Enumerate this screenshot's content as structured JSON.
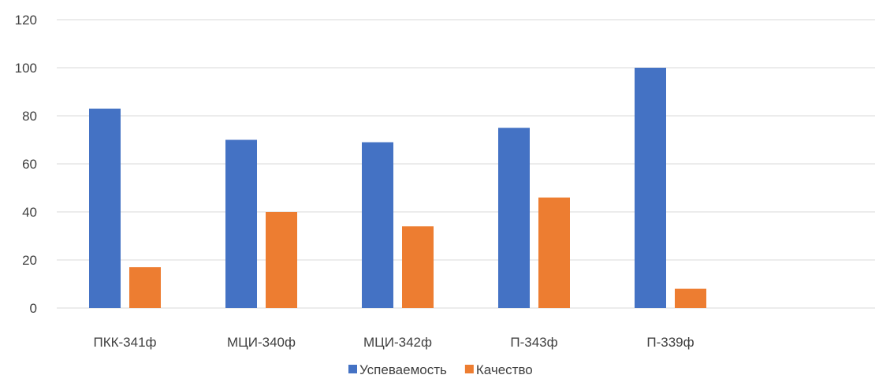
{
  "chart_data": {
    "type": "bar",
    "title": "",
    "xlabel": "",
    "ylabel": "",
    "categories": [
      "ПКК-341ф",
      "МЦИ-340ф",
      "МЦИ-342ф",
      "П-343ф",
      "П-339ф",
      ""
    ],
    "series": [
      {
        "name": "Успеваемость",
        "color": "#4472c4",
        "values": [
          83,
          70,
          69,
          75,
          100,
          null
        ]
      },
      {
        "name": "Качество",
        "color": "#ed7d31",
        "values": [
          17,
          40,
          34,
          46,
          8,
          null
        ]
      }
    ],
    "ylim": [
      0,
      120
    ],
    "yticks": [
      0,
      20,
      40,
      60,
      80,
      100,
      120
    ],
    "grid": true,
    "legend_position": "bottom"
  }
}
